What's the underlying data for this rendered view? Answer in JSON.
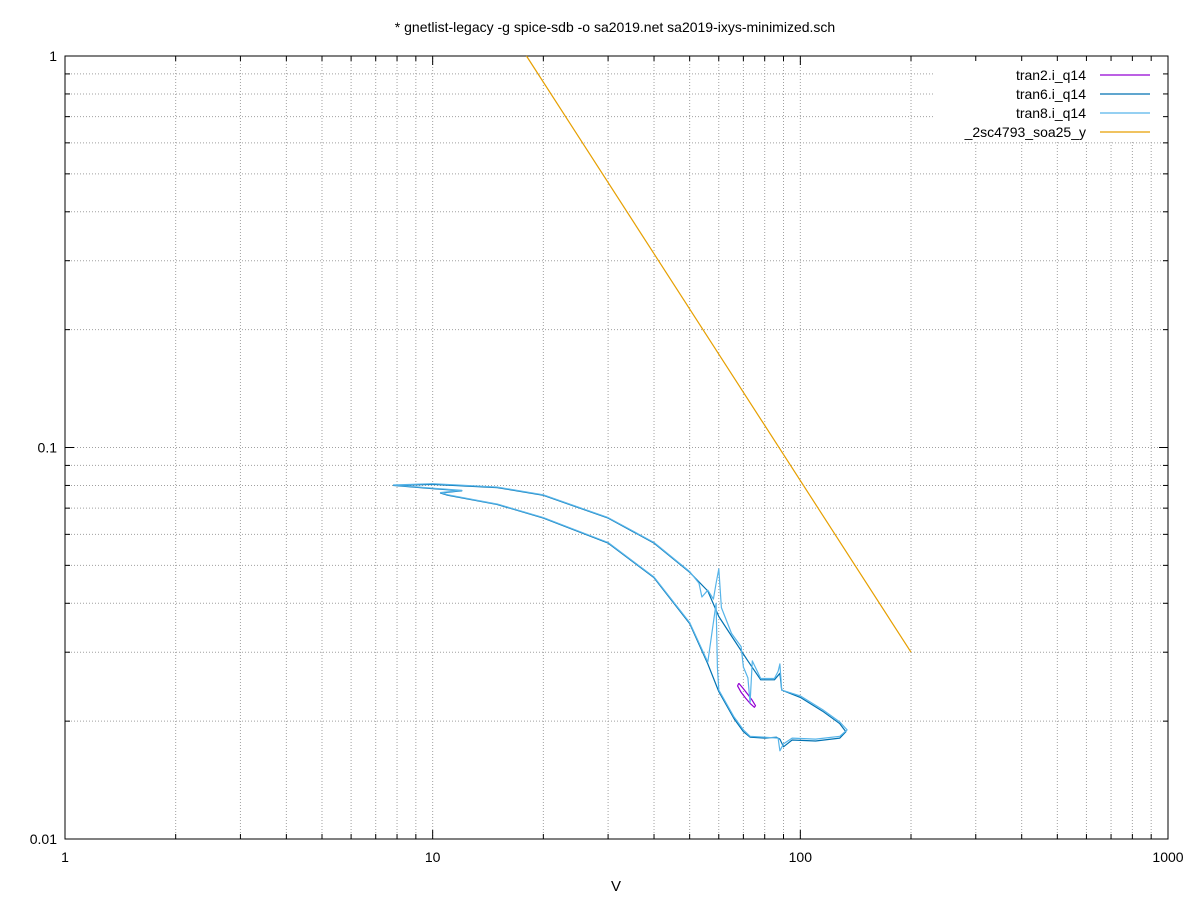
{
  "chart_data": {
    "type": "line",
    "title": "* gnetlist-legacy -g spice-sdb -o sa2019.net sa2019-ixys-minimized.sch",
    "xlabel": "V",
    "ylabel": "",
    "xscale": "log",
    "yscale": "log",
    "xlim": [
      1,
      1000
    ],
    "ylim": [
      0.01,
      1
    ],
    "x_ticks": [
      {
        "value": 1,
        "label": "1"
      },
      {
        "value": 10,
        "label": "10"
      },
      {
        "value": 100,
        "label": "100"
      },
      {
        "value": 1000,
        "label": "1000"
      }
    ],
    "y_ticks": [
      {
        "value": 0.01,
        "label": "0.01"
      },
      {
        "value": 0.1,
        "label": "0.1"
      },
      {
        "value": 1,
        "label": "1"
      }
    ],
    "grid": true,
    "legend_position": "top-right",
    "series": [
      {
        "name": "tran2.i_q14",
        "color": "#9400d3",
        "points": [
          [
            68,
            0.025
          ],
          [
            70,
            0.0242
          ],
          [
            72,
            0.0234
          ],
          [
            74,
            0.0226
          ],
          [
            75.5,
            0.0219
          ],
          [
            75,
            0.0217
          ],
          [
            73,
            0.0222
          ],
          [
            71,
            0.0229
          ],
          [
            69,
            0.0237
          ],
          [
            67.5,
            0.0246
          ],
          [
            68,
            0.025
          ]
        ]
      },
      {
        "name": "tran6.i_q14",
        "color": "#0072b2",
        "points": [
          [
            7.8,
            0.08
          ],
          [
            10,
            0.0805
          ],
          [
            15,
            0.079
          ],
          [
            20,
            0.0755
          ],
          [
            30,
            0.066
          ],
          [
            40,
            0.057
          ],
          [
            50,
            0.048
          ],
          [
            56,
            0.043
          ],
          [
            60,
            0.037
          ],
          [
            65,
            0.033
          ],
          [
            72,
            0.0285
          ],
          [
            78,
            0.0255
          ],
          [
            85,
            0.0255
          ],
          [
            88,
            0.0265
          ],
          [
            89,
            0.024
          ],
          [
            100,
            0.023
          ],
          [
            115,
            0.0212
          ],
          [
            128,
            0.0197
          ],
          [
            133,
            0.0188
          ],
          [
            128,
            0.0181
          ],
          [
            110,
            0.0178
          ],
          [
            95,
            0.0179
          ],
          [
            90,
            0.0172
          ],
          [
            88,
            0.018
          ],
          [
            86,
            0.0182
          ],
          [
            80,
            0.0181
          ],
          [
            73,
            0.0182
          ],
          [
            70,
            0.0188
          ],
          [
            66,
            0.0203
          ],
          [
            60,
            0.0238
          ],
          [
            56,
            0.028
          ],
          [
            50,
            0.0355
          ],
          [
            40,
            0.0465
          ],
          [
            30,
            0.057
          ],
          [
            20,
            0.066
          ],
          [
            15,
            0.0715
          ],
          [
            11,
            0.0755
          ],
          [
            10.5,
            0.0765
          ],
          [
            12,
            0.0775
          ],
          [
            10,
            0.0785
          ],
          [
            7.8,
            0.08
          ]
        ]
      },
      {
        "name": "tran8.i_q14",
        "color": "#56b4e9",
        "points": [
          [
            7.8,
            0.0802
          ],
          [
            10,
            0.0808
          ],
          [
            15,
            0.0792
          ],
          [
            20,
            0.0757
          ],
          [
            30,
            0.0662
          ],
          [
            40,
            0.0572
          ],
          [
            50,
            0.0482
          ],
          [
            53,
            0.045
          ],
          [
            54,
            0.0415
          ],
          [
            56,
            0.0432
          ],
          [
            58,
            0.041
          ],
          [
            59,
            0.045
          ],
          [
            60,
            0.049
          ],
          [
            61,
            0.039
          ],
          [
            65,
            0.0335
          ],
          [
            69,
            0.031
          ],
          [
            70,
            0.0275
          ],
          [
            72,
            0.0258
          ],
          [
            73,
            0.0223
          ],
          [
            74,
            0.0285
          ],
          [
            78,
            0.0257
          ],
          [
            85,
            0.0257
          ],
          [
            87,
            0.0268
          ],
          [
            88,
            0.028
          ],
          [
            89,
            0.024
          ],
          [
            100,
            0.0232
          ],
          [
            115,
            0.0214
          ],
          [
            128,
            0.0199
          ],
          [
            134,
            0.019
          ],
          [
            128,
            0.0183
          ],
          [
            110,
            0.018
          ],
          [
            95,
            0.0181
          ],
          [
            90,
            0.0175
          ],
          [
            88,
            0.0168
          ],
          [
            87,
            0.0181
          ],
          [
            80,
            0.0182
          ],
          [
            73,
            0.0183
          ],
          [
            70,
            0.019
          ],
          [
            66,
            0.0205
          ],
          [
            60,
            0.024
          ],
          [
            59.5,
            0.0275
          ],
          [
            59,
            0.04
          ],
          [
            56,
            0.0283
          ],
          [
            50,
            0.0357
          ],
          [
            40,
            0.0467
          ],
          [
            30,
            0.0572
          ],
          [
            20,
            0.0662
          ],
          [
            15,
            0.0717
          ],
          [
            11,
            0.0757
          ],
          [
            10.5,
            0.0767
          ],
          [
            12,
            0.0777
          ],
          [
            10,
            0.0787
          ],
          [
            7.8,
            0.0802
          ]
        ]
      },
      {
        "name": "_2sc4793_soa25_y",
        "color": "#e69f00",
        "points": [
          [
            18,
            1.0
          ],
          [
            200,
            0.03
          ]
        ]
      }
    ]
  }
}
